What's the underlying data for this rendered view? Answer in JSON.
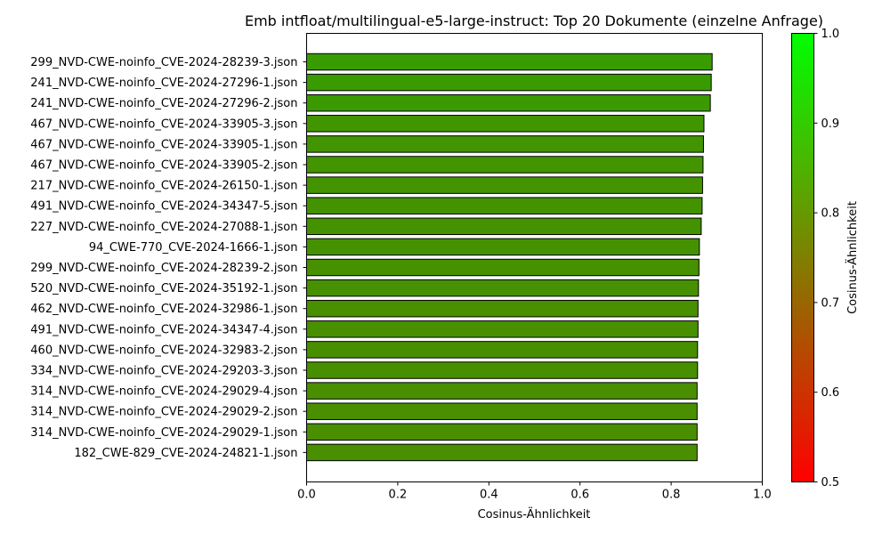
{
  "chart_data": {
    "type": "bar",
    "orientation": "horizontal",
    "title": "Emb intfloat/multilingual-e5-large-instruct: Top 20 Dokumente (einzelne Anfrage)",
    "xlabel": "Cosinus-Ähnlichkeit",
    "ylabel": "",
    "xlim": [
      0.0,
      1.0
    ],
    "xticks": [
      "0.0",
      "0.2",
      "0.4",
      "0.6",
      "0.8",
      "1.0"
    ],
    "grid": false,
    "categories": [
      "299_NVD-CWE-noinfo_CVE-2024-28239-3.json",
      "241_NVD-CWE-noinfo_CVE-2024-27296-1.json",
      "241_NVD-CWE-noinfo_CVE-2024-27296-2.json",
      "467_NVD-CWE-noinfo_CVE-2024-33905-3.json",
      "467_NVD-CWE-noinfo_CVE-2024-33905-1.json",
      "467_NVD-CWE-noinfo_CVE-2024-33905-2.json",
      "217_NVD-CWE-noinfo_CVE-2024-26150-1.json",
      "491_NVD-CWE-noinfo_CVE-2024-34347-5.json",
      "227_NVD-CWE-noinfo_CVE-2024-27088-1.json",
      "94_CWE-770_CVE-2024-1666-1.json",
      "299_NVD-CWE-noinfo_CVE-2024-28239-2.json",
      "520_NVD-CWE-noinfo_CVE-2024-35192-1.json",
      "462_NVD-CWE-noinfo_CVE-2024-32986-1.json",
      "491_NVD-CWE-noinfo_CVE-2024-34347-4.json",
      "460_NVD-CWE-noinfo_CVE-2024-32983-2.json",
      "334_NVD-CWE-noinfo_CVE-2024-29203-3.json",
      "314_NVD-CWE-noinfo_CVE-2024-29029-4.json",
      "314_NVD-CWE-noinfo_CVE-2024-29029-2.json",
      "314_NVD-CWE-noinfo_CVE-2024-29029-1.json",
      "182_CWE-829_CVE-2024-24821-1.json"
    ],
    "values": [
      0.89,
      0.888,
      0.886,
      0.872,
      0.871,
      0.87,
      0.869,
      0.868,
      0.866,
      0.862,
      0.861,
      0.86,
      0.859,
      0.859,
      0.858,
      0.858,
      0.857,
      0.857,
      0.857,
      0.857
    ],
    "bar_edge_color": "#000000",
    "colorbar": {
      "label": "Cosinus-Ähnlichkeit",
      "range": [
        0.5,
        1.0
      ],
      "ticks": [
        "0.5",
        "0.6",
        "0.7",
        "0.8",
        "0.9",
        "1.0"
      ],
      "color_low": "#ff0000",
      "color_high": "#00ff00"
    }
  }
}
